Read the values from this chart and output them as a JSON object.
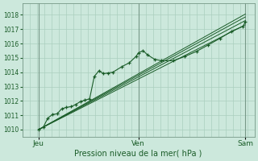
{
  "background_color": "#cce8dc",
  "plot_bg_color": "#cce8dc",
  "grid_color": "#aacfbe",
  "line_color": "#1a5c28",
  "title": "Pression niveau de la mer( hPa )",
  "ylim": [
    1009.5,
    1018.8
  ],
  "yticks": [
    1010,
    1011,
    1012,
    1013,
    1014,
    1015,
    1016,
    1017,
    1018
  ],
  "xtick_labels": [
    "Jeu",
    "Ven",
    "Sam"
  ],
  "xtick_positions": [
    0.07,
    0.5,
    0.96
  ],
  "vlines": [
    0.07,
    0.5,
    0.96
  ],
  "xlim": [
    0.0,
    1.0
  ],
  "series": [
    [
      0.07,
      1010.0
    ],
    [
      0.09,
      1010.15
    ],
    [
      0.11,
      1010.8
    ],
    [
      0.13,
      1011.05
    ],
    [
      0.15,
      1011.1
    ],
    [
      0.17,
      1011.45
    ],
    [
      0.19,
      1011.55
    ],
    [
      0.21,
      1011.6
    ],
    [
      0.23,
      1011.75
    ],
    [
      0.25,
      1011.95
    ],
    [
      0.27,
      1012.05
    ],
    [
      0.29,
      1012.15
    ],
    [
      0.31,
      1013.7
    ],
    [
      0.33,
      1014.1
    ],
    [
      0.35,
      1013.9
    ],
    [
      0.37,
      1013.95
    ],
    [
      0.39,
      1014.0
    ],
    [
      0.43,
      1014.4
    ],
    [
      0.46,
      1014.65
    ],
    [
      0.49,
      1015.1
    ],
    [
      0.5,
      1015.35
    ],
    [
      0.52,
      1015.5
    ],
    [
      0.54,
      1015.2
    ],
    [
      0.57,
      1014.9
    ],
    [
      0.6,
      1014.8
    ],
    [
      0.65,
      1014.8
    ],
    [
      0.7,
      1015.1
    ],
    [
      0.75,
      1015.45
    ],
    [
      0.8,
      1015.9
    ],
    [
      0.85,
      1016.35
    ],
    [
      0.9,
      1016.85
    ],
    [
      0.95,
      1017.2
    ],
    [
      0.96,
      1017.5
    ]
  ],
  "band_series": [
    [
      [
        0.07,
        1010.0
      ],
      [
        0.96,
        1017.3
      ]
    ],
    [
      [
        0.07,
        1010.0
      ],
      [
        0.96,
        1017.6
      ]
    ],
    [
      [
        0.07,
        1010.0
      ],
      [
        0.96,
        1017.85
      ]
    ],
    [
      [
        0.07,
        1010.0
      ],
      [
        0.96,
        1018.05
      ]
    ]
  ],
  "n_vertical_gridlines": 32,
  "n_horizontal_gridlines": 9
}
